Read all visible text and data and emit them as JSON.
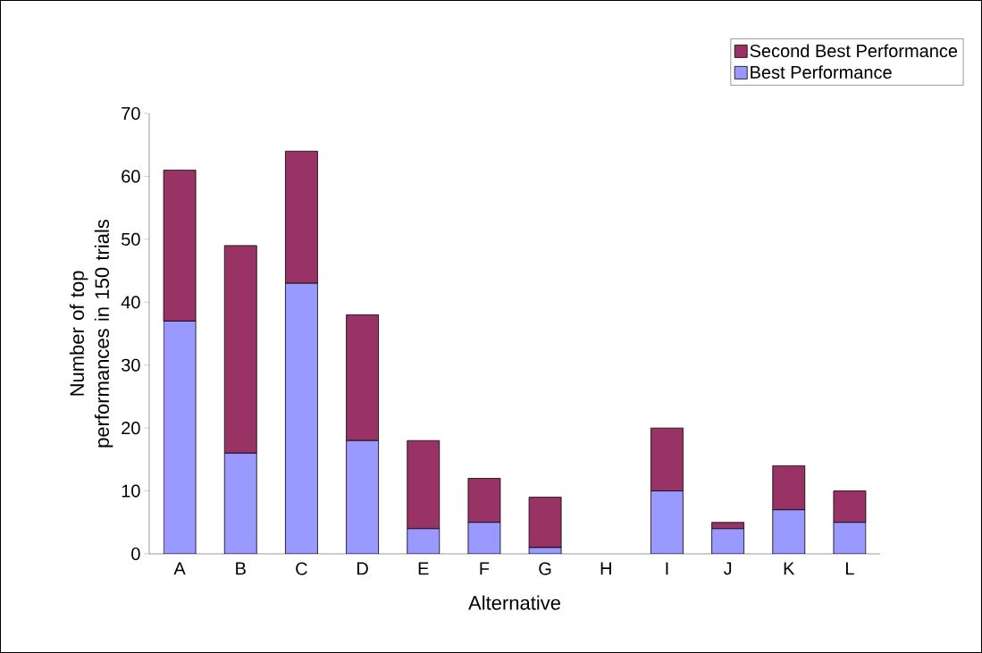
{
  "chart_data": {
    "type": "bar",
    "stacked": true,
    "xlabel": "Alternative",
    "ylabel": "Number of top performances in 150 trials",
    "categories": [
      "A",
      "B",
      "C",
      "D",
      "E",
      "F",
      "G",
      "H",
      "I",
      "J",
      "K",
      "L"
    ],
    "series": [
      {
        "name": "Best Performance",
        "color": "#9999ff",
        "values": [
          37,
          16,
          43,
          18,
          4,
          5,
          1,
          0,
          10,
          4,
          7,
          5
        ]
      },
      {
        "name": "Second Best Performance",
        "color": "#993366",
        "values": [
          24,
          33,
          21,
          20,
          14,
          7,
          8,
          0,
          10,
          1,
          7,
          5
        ]
      }
    ],
    "ylim": [
      0,
      70
    ],
    "yticks": [
      0,
      10,
      20,
      30,
      40,
      50,
      60,
      70
    ],
    "legend": "top right"
  }
}
